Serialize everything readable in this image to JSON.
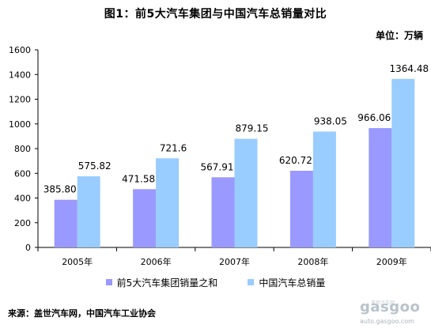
{
  "title": "图1：前5大汽车集团与中国汽车总销量对比",
  "unit": "单位：万辆",
  "source": "来源：盖世汽车网，中国汽车工业协会",
  "watermark": {
    "logo": "gasgoo",
    "sub": "盖世汽车网",
    "url": "auto.gasgoo.com"
  },
  "chart_data": {
    "type": "bar",
    "categories": [
      "2005年",
      "2006年",
      "2007年",
      "2008年",
      "2009年"
    ],
    "series": [
      {
        "name": "前5大汽车集团销量之和",
        "values": [
          385.8,
          471.58,
          567.91,
          620.72,
          966.06
        ],
        "labels": [
          "385.80",
          "471.58",
          "567.91",
          "620.72",
          "966.06"
        ],
        "color": "#9999ff"
      },
      {
        "name": "中国汽车总销量",
        "values": [
          575.82,
          721.6,
          879.15,
          938.05,
          1364.48
        ],
        "labels": [
          "575.82",
          "721.6",
          "879.15",
          "938.05",
          "1364.48"
        ],
        "color": "#99ccff"
      }
    ],
    "ylim": [
      0,
      1600
    ],
    "yticks": [
      "0",
      "200",
      "400",
      "600",
      "800",
      "1000",
      "1200",
      "1400",
      "1600"
    ],
    "grid": false,
    "legend": "bottom"
  }
}
